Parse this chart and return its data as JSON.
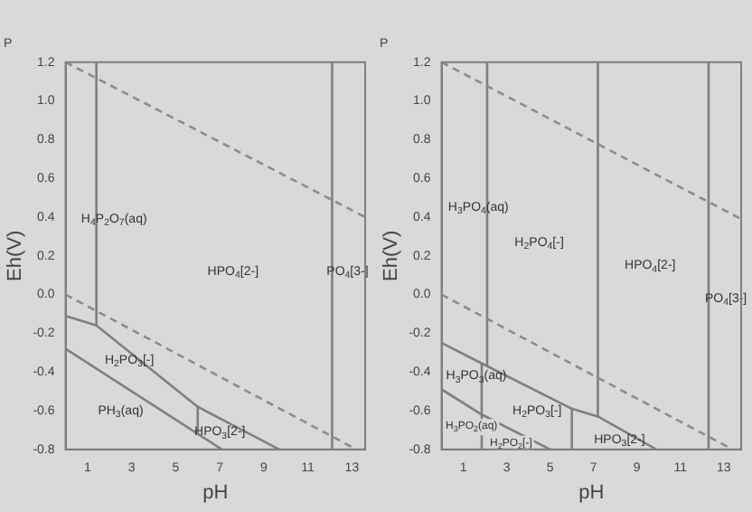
{
  "chart_data": [
    {
      "type": "line",
      "title": "P",
      "xlabel": "pH",
      "ylabel": "Eh(V)",
      "xlim": [
        0,
        13.6
      ],
      "ylim": [
        -0.8,
        1.2
      ],
      "xticks": [
        1,
        3,
        5,
        7,
        9,
        11,
        13
      ],
      "yticks": [
        {
          "value": -0.8,
          "label": "-0.8"
        },
        {
          "value": -0.6,
          "label": "-0.6"
        },
        {
          "value": -0.4,
          "label": "-0.4"
        },
        {
          "value": -0.2,
          "label": "-0.2"
        },
        {
          "value": 0,
          "label": "0.0"
        },
        {
          "value": 0.2,
          "label": "0.2"
        },
        {
          "value": 0.4,
          "label": "0.4"
        },
        {
          "value": 0.6,
          "label": "0.6"
        },
        {
          "value": 0.8,
          "label": "0.8"
        },
        {
          "value": 1,
          "label": "1.0"
        },
        {
          "value": 1.2,
          "label": "1.2"
        }
      ],
      "series": [
        {
          "color": "#8c8c8c",
          "line_style": "dashed",
          "x": [
            0,
            13.6
          ],
          "values": [
            1.2,
            0.4
          ]
        },
        {
          "color": "#8c8c8c",
          "line_style": "dashed",
          "x": [
            0,
            13.2
          ],
          "values": [
            0,
            -0.8
          ]
        },
        {
          "color": "#7f7f7f",
          "x": [
            1.4,
            1.4
          ],
          "values": [
            1.2,
            -0.16
          ]
        },
        {
          "color": "#7f7f7f",
          "x": [
            12.1,
            12.1
          ],
          "values": [
            1.2,
            -0.8
          ]
        },
        {
          "color": "#7f7f7f",
          "x": [
            0,
            1.4,
            6.0,
            9.7
          ],
          "values": [
            -0.11,
            -0.16,
            -0.58,
            -0.8
          ]
        },
        {
          "color": "#7f7f7f",
          "x": [
            6.0,
            6.0
          ],
          "values": [
            -0.58,
            -0.72
          ]
        },
        {
          "color": "#7f7f7f",
          "x": [
            0,
            7.1
          ],
          "values": [
            -0.28,
            -0.8
          ]
        }
      ],
      "annotations": [
        "H$_{4}$P$_{2}$O$_{7}$(aq)",
        "HPO$_{4}$[2-]",
        "PO$_{4}$[3-]",
        "H$_{2}$PO$_{3}$[-]",
        "PH$_{3}$(aq)",
        "HPO$_{3}$[2-]"
      ]
    },
    {
      "type": "line",
      "title": "P",
      "xlabel": "pH",
      "ylabel": "Eh(V)",
      "xlim": [
        0,
        13.8
      ],
      "ylim": [
        -0.8,
        1.2
      ],
      "xticks": [
        1,
        3,
        5,
        7,
        9,
        11,
        13
      ],
      "yticks": [
        {
          "value": -0.8,
          "label": "-0.8"
        },
        {
          "value": -0.6,
          "label": "-0.6"
        },
        {
          "value": -0.4,
          "label": "-0.4"
        },
        {
          "value": -0.2,
          "label": "-0.2"
        },
        {
          "value": 0,
          "label": "0.0"
        },
        {
          "value": 0.2,
          "label": "0.2"
        },
        {
          "value": 0.4,
          "label": "0.4"
        },
        {
          "value": 0.6,
          "label": "0.6"
        },
        {
          "value": 0.8,
          "label": "0.8"
        },
        {
          "value": 1,
          "label": "1.0"
        },
        {
          "value": 1.2,
          "label": "1.2"
        }
      ],
      "series": [
        {
          "color": "#8c8c8c",
          "line_style": "dashed",
          "x": [
            0,
            13.8
          ],
          "values": [
            1.2,
            0.39
          ]
        },
        {
          "color": "#8c8c8c",
          "line_style": "dashed",
          "x": [
            0,
            13.4
          ],
          "values": [
            0,
            -0.8
          ]
        },
        {
          "color": "#7f7f7f",
          "x": [
            2.1,
            2.1
          ],
          "values": [
            1.2,
            -0.37
          ]
        },
        {
          "color": "#7f7f7f",
          "x": [
            7.2,
            7.2
          ],
          "values": [
            1.2,
            -0.63
          ]
        },
        {
          "color": "#7f7f7f",
          "x": [
            12.3,
            12.3
          ],
          "values": [
            1.2,
            -0.8
          ]
        },
        {
          "color": "#7f7f7f",
          "x": [
            0,
            2.1,
            6.0,
            7.2,
            9.9
          ],
          "values": [
            -0.25,
            -0.37,
            -0.59,
            -0.63,
            -0.8
          ]
        },
        {
          "color": "#7f7f7f",
          "x": [
            6.0,
            6.0
          ],
          "values": [
            -0.59,
            -0.8
          ]
        },
        {
          "color": "#7f7f7f",
          "x": [
            1.85,
            1.85
          ],
          "values": [
            -0.36,
            -0.8
          ]
        },
        {
          "color": "#7f7f7f",
          "x": [
            0,
            1.85,
            5.0
          ],
          "values": [
            -0.49,
            -0.62,
            -0.8
          ]
        }
      ],
      "annotations": [
        "H$_{3}$PO$_{4}$(aq)",
        "H$_{2}$PO$_{4}$[-]",
        "HPO$_{4}$[2-]",
        "PO$_{4}$[3-]",
        "H$_{3}$PO$_{3}$(aq)",
        "H$_{2}$PO$_{3}$[-]",
        "H$_{3}$PO$_{2}$(aq)",
        "H$_{2}$PO$_{2}$[-]",
        "HPO$_{3}$[2-]"
      ]
    }
  ]
}
